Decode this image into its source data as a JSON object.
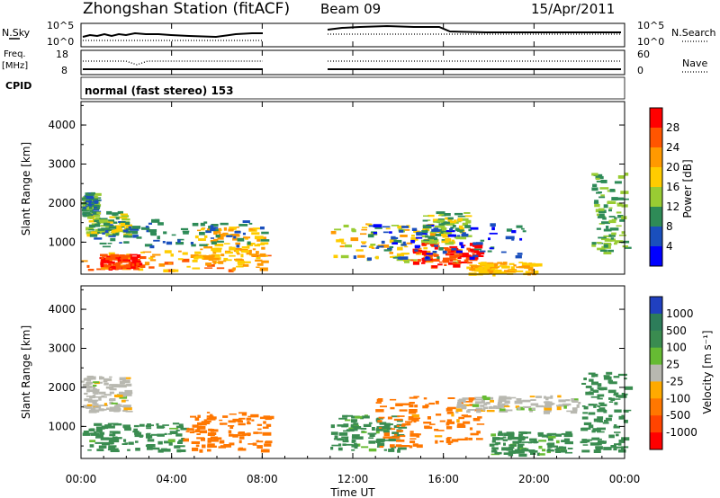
{
  "header": {
    "station": "Zhongshan Station (fitACF)",
    "beam": "Beam 09",
    "date": "15/Apr/2011"
  },
  "panels": {
    "nsky_label": "N.Sky",
    "nsky_ticks": [
      "10^5",
      "10^0"
    ],
    "nsearch_label": "N.Search",
    "nsearch_ticks": [
      "10^5",
      "10^0"
    ],
    "freq_label_1": "Freq.",
    "freq_label_2": "[MHz]",
    "freq_ticks": [
      "18",
      "8"
    ],
    "nave_label": "Nave",
    "nave_ticks": [
      "60",
      "0"
    ],
    "cpid_label": "CPID",
    "cpid_text": "normal (fast stereo) 153"
  },
  "colorbars": {
    "power": {
      "label": "Power [dB]",
      "ticks": [
        "28",
        "24",
        "20",
        "16",
        "12",
        "8",
        "4"
      ],
      "colors": [
        "#ff0000",
        "#ff5500",
        "#ff9900",
        "#ffcc00",
        "#99cc33",
        "#2e8b57",
        "#1a4fbd",
        "#0000ff"
      ]
    },
    "velocity": {
      "label": "Velocity [m s⁻¹]",
      "ticks": [
        "1000",
        "500",
        "100",
        "25",
        "-25",
        "-100",
        "-500",
        "-1000"
      ],
      "colors": [
        "#2040c0",
        "#2d7d5a",
        "#3a8c50",
        "#66bb33",
        "#b8b8b0",
        "#ffaa00",
        "#ff7700",
        "#ff4400",
        "#ff0000"
      ]
    }
  },
  "axes": {
    "ylabel": "Slant Range [km]",
    "yticks": [
      "4000",
      "3000",
      "2000",
      "1000"
    ],
    "xlabel": "Time UT",
    "xticks": [
      "00:00",
      "04:00",
      "08:00",
      "12:00",
      "16:00",
      "20:00",
      "00:00"
    ]
  },
  "chart_data": {
    "type": "heatmap",
    "title": "Zhongshan Station (fitACF)  Beam 09  15/Apr/2011",
    "xlabel": "Time UT",
    "ylabel": "Slant Range [km]",
    "x_ticks_hours": [
      0,
      4,
      8,
      12,
      16,
      20,
      24
    ],
    "ylim": [
      180,
      4600
    ],
    "xlim": [
      0,
      24
    ],
    "data_gap_hours": [
      8.2,
      11.0
    ],
    "power_cbar_range_db": [
      0,
      32
    ],
    "velocity_levels_ms": [
      1000,
      500,
      100,
      25,
      -25,
      -100,
      -500,
      -1000
    ],
    "power_regions": [
      {
        "t0": 0.0,
        "t1": 0.6,
        "r0": 1700,
        "r1": 2300,
        "power_db": 10
      },
      {
        "t0": 0.2,
        "t1": 2.0,
        "r0": 1200,
        "r1": 1800,
        "power_db": 14
      },
      {
        "t0": 0.0,
        "t1": 8.2,
        "r0": 300,
        "r1": 800,
        "power_db": 22
      },
      {
        "t0": 0.8,
        "t1": 2.6,
        "r0": 350,
        "r1": 700,
        "power_db": 28
      },
      {
        "t0": 5.0,
        "t1": 8.0,
        "r0": 500,
        "r1": 1400,
        "power_db": 20
      },
      {
        "t0": 0.5,
        "t1": 8.2,
        "r0": 900,
        "r1": 1600,
        "power_db": 8
      },
      {
        "t0": 11.0,
        "t1": 16.5,
        "r0": 500,
        "r1": 1500,
        "power_db": 18
      },
      {
        "t0": 14.5,
        "t1": 17.5,
        "r0": 400,
        "r1": 1000,
        "power_db": 28
      },
      {
        "t0": 15.0,
        "t1": 17.0,
        "r0": 1000,
        "r1": 1800,
        "power_db": 14
      },
      {
        "t0": 12.0,
        "t1": 19.5,
        "r0": 600,
        "r1": 1500,
        "power_db": 6
      },
      {
        "t0": 17.0,
        "t1": 20.0,
        "r0": 200,
        "r1": 500,
        "power_db": 20
      },
      {
        "t0": 22.5,
        "t1": 24.0,
        "r0": 700,
        "r1": 2800,
        "power_db": 12
      }
    ],
    "velocity_regions": [
      {
        "t0": 0.0,
        "t1": 2.0,
        "r0": 1400,
        "r1": 2300,
        "velocity_ms": 0
      },
      {
        "t0": 0.0,
        "t1": 4.5,
        "r0": 400,
        "r1": 1100,
        "velocity_ms": 200
      },
      {
        "t0": 4.5,
        "t1": 8.2,
        "r0": 400,
        "r1": 1400,
        "velocity_ms": -300
      },
      {
        "t0": 11.0,
        "t1": 14.0,
        "r0": 400,
        "r1": 1300,
        "velocity_ms": 150
      },
      {
        "t0": 13.0,
        "t1": 17.5,
        "r0": 500,
        "r1": 1800,
        "velocity_ms": -200
      },
      {
        "t0": 16.5,
        "t1": 22.0,
        "r0": 1400,
        "r1": 1800,
        "velocity_ms": 0
      },
      {
        "t0": 18.0,
        "t1": 21.5,
        "r0": 300,
        "r1": 900,
        "velocity_ms": 150
      },
      {
        "t0": 22.0,
        "t1": 24.0,
        "r0": 400,
        "r1": 2400,
        "velocity_ms": 300
      }
    ]
  }
}
